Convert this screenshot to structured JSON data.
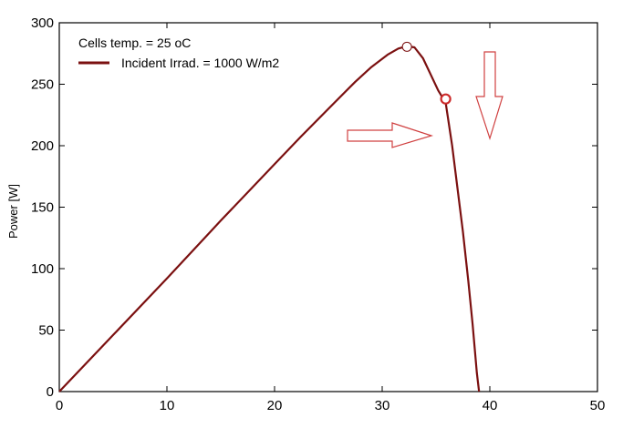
{
  "chart_data": {
    "type": "line",
    "title": "",
    "xlabel": "",
    "ylabel": "Power [W]",
    "xlim": [
      0,
      50
    ],
    "ylim": [
      0,
      300
    ],
    "x_ticks": [
      0,
      10,
      20,
      30,
      40,
      50
    ],
    "y_ticks": [
      0,
      50,
      100,
      150,
      200,
      250,
      300
    ],
    "grid": false,
    "legend_position": "top-left",
    "legend": {
      "header": "Cells temp.  = 25 oC",
      "entry": "Incident Irrad. = 1000 W/m2"
    },
    "series": [
      {
        "name": "Incident Irrad. = 1000 W/m2",
        "color": "#7b1010",
        "x": [
          0,
          5,
          10,
          15,
          20,
          22.4,
          25,
          27.5,
          29,
          30.5,
          31.5,
          32.3,
          33,
          33.8,
          34.5,
          35.2,
          35.9,
          36.5,
          37,
          37.5,
          38,
          38.4,
          38.8,
          39.0
        ],
        "y": [
          0,
          46,
          92,
          139,
          185,
          207,
          230,
          252,
          264,
          274,
          279,
          281,
          280,
          271,
          258,
          245,
          235,
          200,
          165,
          130,
          90,
          55,
          15,
          0
        ]
      }
    ],
    "markers": [
      {
        "name": "max-power-point",
        "x": 32.3,
        "y": 280.5,
        "color": "#ffffff"
      },
      {
        "name": "operating-point",
        "x": 35.9,
        "y": 238,
        "color": "#cc2a2a"
      }
    ],
    "annotation_color": "#d04040"
  }
}
